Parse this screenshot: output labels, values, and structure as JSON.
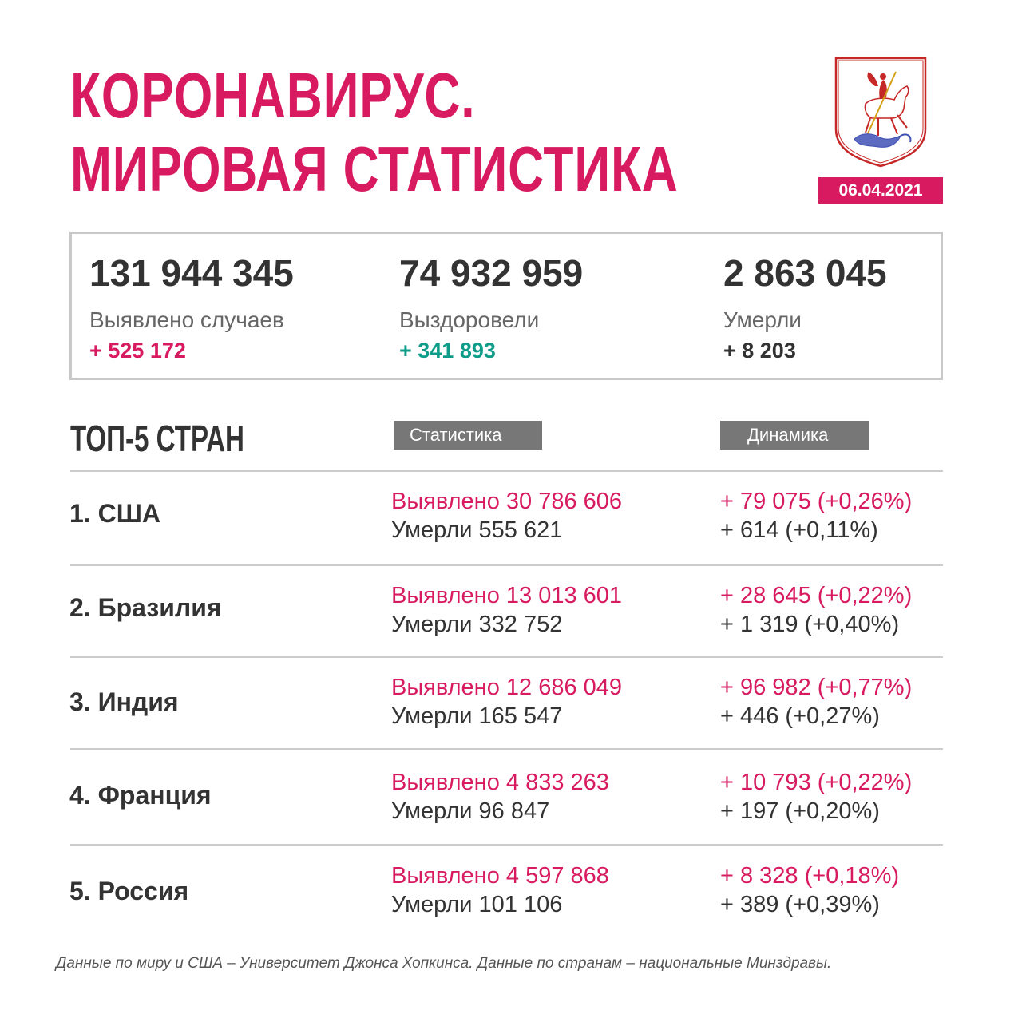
{
  "header": {
    "title_line1": "КОРОНАВИРУС.",
    "title_line2": "МИРОВАЯ СТАТИСТИКА",
    "date": "06.04.2021",
    "crest_icon": "moscow-coat-of-arms-icon"
  },
  "totals": {
    "cases": {
      "value": "131 944 345",
      "label": "Выявлено случаев",
      "delta": "+ 525 172"
    },
    "recovered": {
      "value": "74 932 959",
      "label": "Выздоровели",
      "delta": "+ 341 893"
    },
    "deaths": {
      "value": "2 863 045",
      "label": "Умерли",
      "delta": "+ 8 203"
    }
  },
  "top": {
    "heading": "ТОП-5 СТРАН",
    "stat_header": "Статистика",
    "dyn_header": "Динамика",
    "countries": [
      {
        "name": "1. США",
        "cases": "Выявлено 30 786 606",
        "deaths": "Умерли 555 621",
        "cases_delta": "+ 79 075 (+0,26%)",
        "deaths_delta": "+ 614 (+0,11%)"
      },
      {
        "name": "2. Бразилия",
        "cases": "Выявлено 13 013 601",
        "deaths": "Умерли 332 752",
        "cases_delta": "+ 28 645 (+0,22%)",
        "deaths_delta": "+ 1 319 (+0,40%)"
      },
      {
        "name": "3. Индия",
        "cases": "Выявлено 12 686 049",
        "deaths": "Умерли 165 547",
        "cases_delta": "+ 96 982 (+0,77%)",
        "deaths_delta": "+ 446 (+0,27%)"
      },
      {
        "name": "4. Франция",
        "cases": "Выявлено 4 833 263",
        "deaths": "Умерли 96 847",
        "cases_delta": "+ 10 793 (+0,22%)",
        "deaths_delta": "+ 197 (+0,20%)"
      },
      {
        "name": "5. Россия",
        "cases": "Выявлено 4 597 868",
        "deaths": "Умерли 101 106",
        "cases_delta": "+ 8 328 (+0,18%)",
        "deaths_delta": "+ 389 (+0,39%)"
      }
    ]
  },
  "footnote": "Данные по миру и США – Университет Джонса Хопкинса. Данные по странам – национальные Минздравы.",
  "colors": {
    "accent": "#d81b60",
    "teal": "#0f9d8a",
    "text": "#333333",
    "tag": "#777777"
  }
}
